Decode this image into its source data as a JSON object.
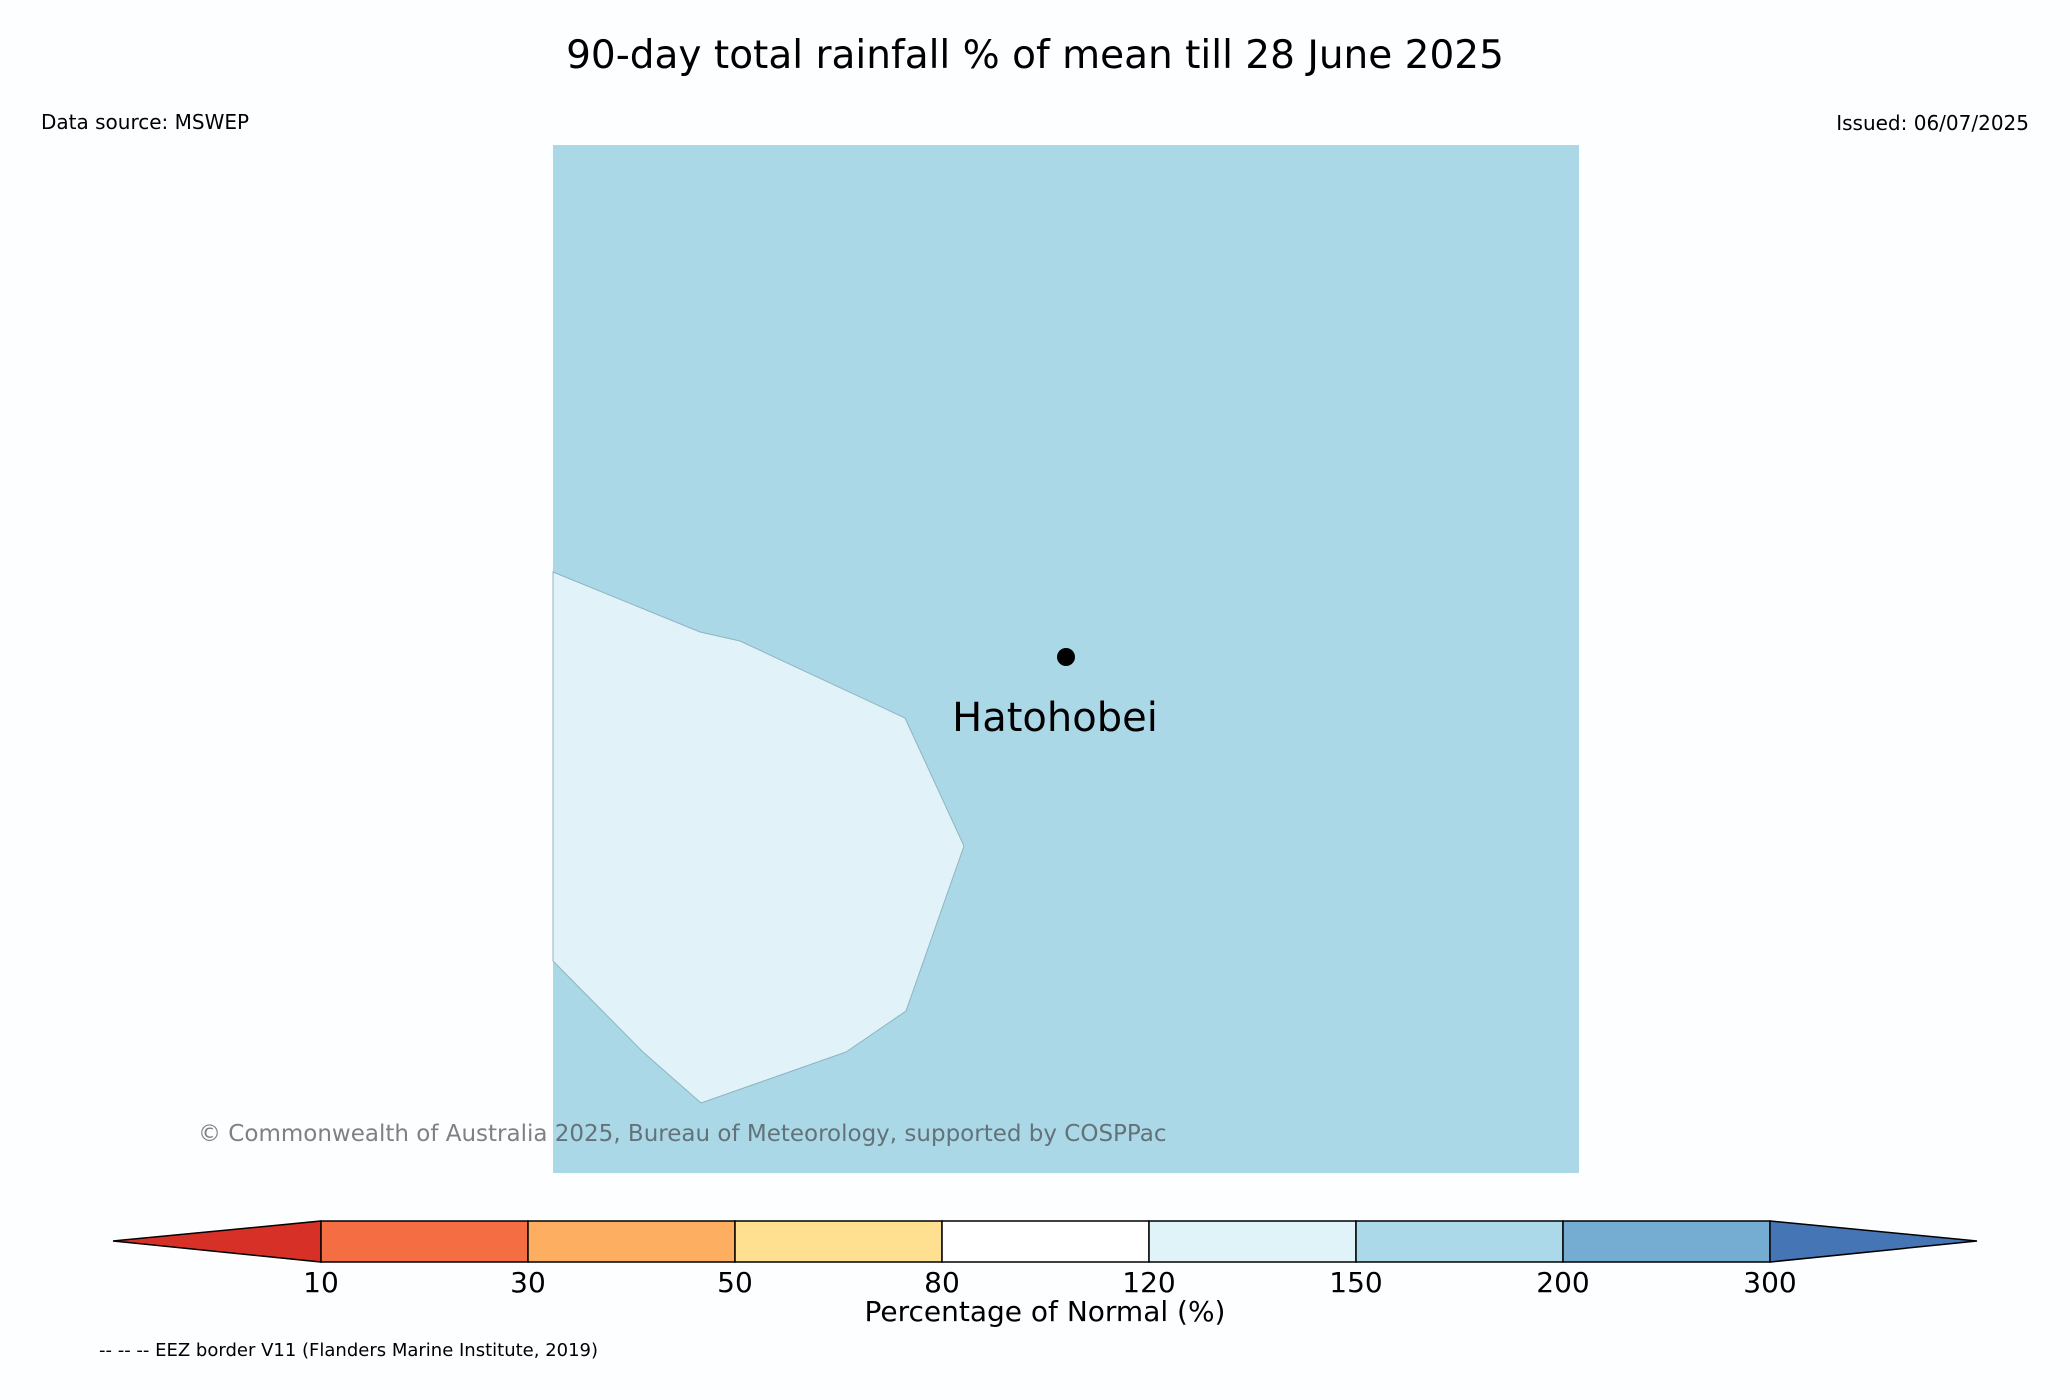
{
  "title": "90-day total rainfall % of mean till 28 June 2025",
  "data_source": "Data source: MSWEP",
  "issued": "Issued: 06/07/2025",
  "copyright": "© Commonwealth of Australia 2025, Bureau of Meteorology, supported by COSPPac",
  "footnote": "-- -- -- EEZ border V11 (Flanders Marine Institute, 2019)",
  "map": {
    "location": {
      "name": "Hatohobei",
      "marker": "filled-circle"
    },
    "region_categories": [
      "150-200",
      "120-150"
    ],
    "colors": {
      "above_150": "#abd8e7",
      "120_to_150": "#e1f3f8"
    }
  },
  "legend": {
    "label": "Percentage of Normal (%)",
    "ticks": [
      "10",
      "30",
      "50",
      "80",
      "120",
      "150",
      "200",
      "300"
    ],
    "colors": [
      "#d73027",
      "#f46d43",
      "#fdae61",
      "#fee090",
      "#ffffff",
      "#e0f3f8",
      "#abd9e9",
      "#74add1",
      "#4575b4"
    ]
  }
}
